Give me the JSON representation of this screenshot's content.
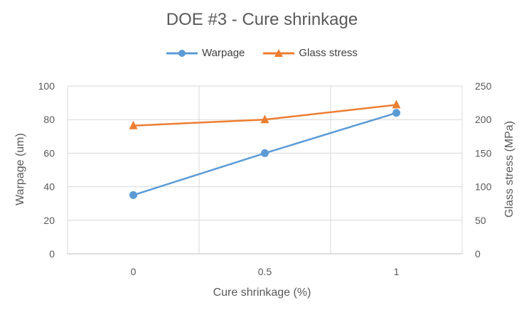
{
  "chart_data": {
    "type": "line",
    "title": "DOE #3 - Cure shrinkage",
    "xlabel": "Cure shrinkage (%)",
    "ylabel": "Warpage (um)",
    "y2label": "Glass stress (MPa)",
    "x": [
      0,
      0.5,
      1
    ],
    "x_ticks": [
      "0",
      "0.5",
      "1"
    ],
    "xlim": [
      -0.25,
      1.25
    ],
    "ylim": [
      0,
      100
    ],
    "y_ticks": [
      0,
      20,
      40,
      60,
      80,
      100
    ],
    "y2lim": [
      0,
      250
    ],
    "y2_ticks": [
      0,
      50,
      100,
      150,
      200,
      250
    ],
    "grid": true,
    "legend_position": "top",
    "series": [
      {
        "name": "Warpage",
        "axis": "left",
        "values": [
          35,
          60,
          84
        ],
        "color": "#5B9BD5",
        "marker": "circle"
      },
      {
        "name": "Glass stress",
        "axis": "right",
        "values": [
          191,
          200,
          222
        ],
        "color": "#ED7D31",
        "marker": "triangle"
      }
    ]
  }
}
